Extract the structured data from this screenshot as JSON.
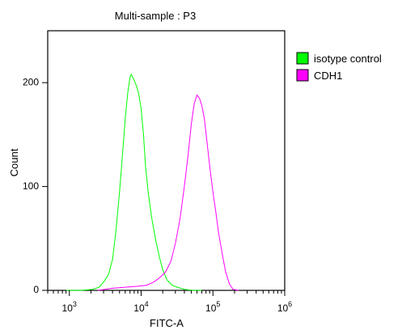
{
  "chart_data": {
    "type": "line",
    "title": "Multi-sample : P3",
    "xlabel": "FITC-A",
    "ylabel": "Count",
    "x_scale": "log",
    "xlim": [
      500,
      1000000
    ],
    "ylim": [
      0,
      250
    ],
    "grid": false,
    "legend_position": "top-right",
    "x_ticks": [
      {
        "base": "10",
        "exp": "3",
        "value": 1000
      },
      {
        "base": "10",
        "exp": "4",
        "value": 10000
      },
      {
        "base": "10",
        "exp": "5",
        "value": 100000
      },
      {
        "base": "10",
        "exp": "6",
        "value": 1000000
      }
    ],
    "y_ticks": [
      {
        "label": "0",
        "value": 0
      },
      {
        "label": "100",
        "value": 100
      },
      {
        "label": "200",
        "value": 200
      }
    ],
    "series": [
      {
        "name": "isotype control",
        "color": "#00ff00",
        "x": [
          900,
          1500,
          2100,
          2600,
          3000,
          3500,
          4000,
          4500,
          5000,
          5500,
          6000,
          6500,
          7000,
          7300,
          7800,
          8500,
          9200,
          10000,
          10800,
          11500,
          12500,
          14000,
          16000,
          18000,
          20000,
          23000,
          27000,
          32000,
          40000,
          52000,
          70000
        ],
        "y": [
          0,
          0,
          1,
          3,
          8,
          15,
          30,
          60,
          95,
          130,
          165,
          190,
          205,
          208,
          204,
          198,
          190,
          175,
          150,
          120,
          95,
          70,
          48,
          32,
          20,
          10,
          5,
          3,
          1,
          0,
          0
        ]
      },
      {
        "name": "CDH1",
        "color": "#ff00ff",
        "x": [
          2500,
          4000,
          6000,
          9000,
          12000,
          15000,
          18000,
          22000,
          26000,
          30000,
          35000,
          40000,
          45000,
          50000,
          55000,
          60000,
          65000,
          70000,
          76000,
          82000,
          90000,
          100000,
          110000,
          120000,
          135000,
          150000,
          170000,
          190000,
          230000
        ],
        "y": [
          0,
          2,
          3,
          4,
          5,
          8,
          12,
          18,
          28,
          45,
          70,
          100,
          130,
          160,
          180,
          188,
          185,
          178,
          165,
          145,
          120,
          95,
          75,
          55,
          35,
          18,
          6,
          1,
          0
        ]
      }
    ]
  }
}
